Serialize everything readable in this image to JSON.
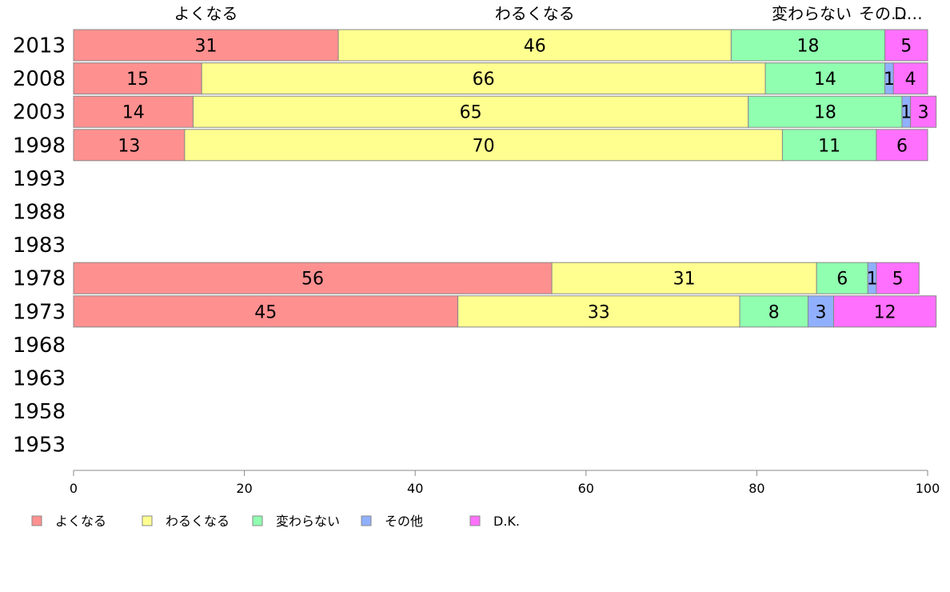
{
  "chart_data": {
    "type": "bar",
    "orientation": "horizontal",
    "stacked": true,
    "categories": [
      "2013",
      "2008",
      "2003",
      "1998",
      "1993",
      "1988",
      "1983",
      "1978",
      "1973",
      "1968",
      "1963",
      "1958",
      "1953"
    ],
    "series": [
      {
        "name": "よくなる",
        "color": "#ff9090",
        "values": [
          31,
          15,
          14,
          13,
          null,
          null,
          null,
          56,
          45,
          null,
          null,
          null,
          null
        ]
      },
      {
        "name": "わるくなる",
        "color": "#ffff90",
        "values": [
          46,
          66,
          65,
          70,
          null,
          null,
          null,
          31,
          33,
          null,
          null,
          null,
          null
        ]
      },
      {
        "name": "変わらない",
        "color": "#90ffb0",
        "values": [
          18,
          14,
          18,
          11,
          null,
          null,
          null,
          6,
          8,
          null,
          null,
          null,
          null
        ]
      },
      {
        "name": "その他",
        "color": "#90b0ff",
        "values": [
          0,
          1,
          1,
          0,
          null,
          null,
          null,
          1,
          3,
          null,
          null,
          null,
          null
        ]
      },
      {
        "name": "D.K.",
        "color": "#ff70ff",
        "values": [
          5,
          4,
          3,
          6,
          null,
          null,
          null,
          5,
          12,
          null,
          null,
          null,
          null
        ]
      }
    ],
    "top_labels": [
      "よくなる",
      "わるくなる",
      "変わらない",
      "その…",
      "D…"
    ],
    "xlim": [
      0,
      100
    ],
    "xticks": [
      0,
      20,
      40,
      60,
      80,
      100
    ],
    "legend": "bottom",
    "grid": false,
    "xlabel": "",
    "ylabel": "",
    "title": ""
  }
}
